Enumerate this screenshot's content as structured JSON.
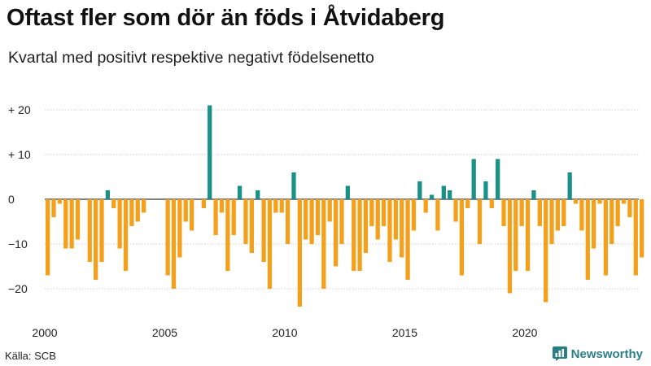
{
  "title": "Oftast fler som dör än föds i Åtvidaberg",
  "subtitle": "Kvartal med positivt respektive negativt födelsenetto",
  "source": "Källa: SCB",
  "brand": "Newsworthy",
  "colors": {
    "positive": "#1a9186",
    "negative": "#f5a01a",
    "grid": "#cccccc",
    "axis": "#333333",
    "brand": "#2a7f86"
  },
  "chart_data": {
    "type": "bar",
    "title": "Oftast fler som dör än föds i Åtvidaberg",
    "subtitle": "Kvartal med positivt respektive negativt födelsenetto",
    "xlabel": "",
    "ylabel": "",
    "ylim": [
      -25,
      25
    ],
    "xlim": [
      2000,
      2024.75
    ],
    "grid": true,
    "y_ticks": [
      20,
      10,
      0,
      -10,
      -20
    ],
    "y_tick_labels": [
      "+ 20",
      "+ 10",
      "0",
      "−10",
      "−20"
    ],
    "x_ticks": [
      2000,
      2005,
      2010,
      2015,
      2020
    ],
    "x_tick_labels": [
      "2000",
      "2005",
      "2010",
      "2015",
      "2020"
    ],
    "start": 2000,
    "step": 0.25,
    "values": [
      -17,
      -4,
      -1,
      -11,
      -11,
      -9,
      0,
      -14,
      -18,
      -14,
      2,
      -2,
      -11,
      -16,
      -6,
      -5,
      -3,
      0,
      0,
      0,
      -17,
      -20,
      -13,
      -5,
      -7,
      0,
      -2,
      21,
      -8,
      -3,
      -16,
      -8,
      3,
      -10,
      -12,
      2,
      -14,
      -20,
      -3,
      -3,
      -10,
      6,
      -24,
      -9,
      -10,
      -8,
      -20,
      -5,
      -15,
      -10,
      3,
      -16,
      -16,
      -12,
      -6,
      -9,
      -6,
      -14,
      -9,
      -13,
      -18,
      -7,
      4,
      -3,
      1,
      -7,
      3,
      2,
      -5,
      -17,
      -2,
      9,
      -10,
      4,
      -2,
      9,
      -6,
      -21,
      -16,
      -6,
      -16,
      2,
      -6,
      -23,
      -10,
      -7,
      -6,
      6,
      -1,
      -7,
      -18,
      -11,
      -1,
      -17,
      -10,
      -6,
      -1,
      -4,
      -17,
      -13
    ]
  }
}
